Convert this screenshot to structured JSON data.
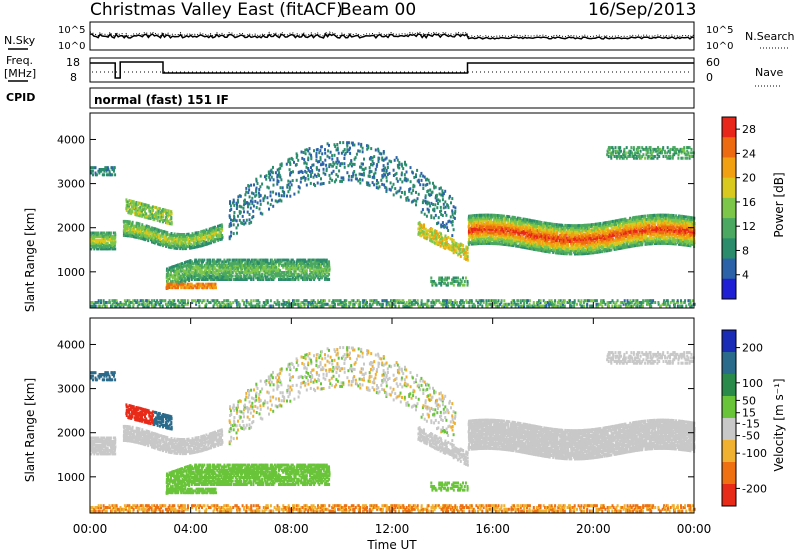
{
  "header": {
    "title": "Christmas Valley East (fitACF)",
    "beam": "Beam 00",
    "date": "16/Sep/2013"
  },
  "noise_panel": {
    "left_label": "N.Sky",
    "right_label": "N.Search",
    "y_ticks": [
      "10^5",
      "10^0"
    ]
  },
  "freq_panel": {
    "left_label_1": "Freq.",
    "left_label_2": "[MHz]",
    "right_label": "Nave",
    "left_ticks": [
      "18",
      "8"
    ],
    "right_ticks": [
      "60",
      "0"
    ]
  },
  "cpid_panel": {
    "label": "CPID",
    "program": "normal (fast) 151 IF"
  },
  "chart_data": [
    {
      "type": "heatmap",
      "panel": "power",
      "ylabel": "Slant Range [km]",
      "xlabel": "Time UT",
      "x_ticks": [
        "00:00",
        "04:00",
        "08:00",
        "12:00",
        "16:00",
        "20:00",
        "00:00"
      ],
      "y_ticks": [
        1000,
        2000,
        3000,
        4000
      ],
      "ylim": [
        180,
        4600
      ],
      "xlim_hours": [
        0,
        24
      ],
      "colorbar": {
        "label": "Power [dB]",
        "ticks": [
          4,
          8,
          12,
          16,
          20,
          24,
          28
        ],
        "range": [
          0,
          30
        ],
        "colors": [
          "#1f1fd6",
          "#2b62a8",
          "#2a8c6a",
          "#4aa860",
          "#7cc64a",
          "#d9c81e",
          "#f0a010",
          "#ee6a10",
          "#e8261a"
        ]
      },
      "bands": [
        {
          "name": "main",
          "start_h": 0,
          "end_h": 1.0,
          "center_km": 1700,
          "width_km": 380,
          "power_db": 16
        },
        {
          "name": "main",
          "start_h": 1.3,
          "end_h": 5.0,
          "center_km": 1900,
          "width_km": 350,
          "power_db": 15
        },
        {
          "name": "inner",
          "start_h": 3.0,
          "end_h": 9.5,
          "center_km": 1080,
          "width_km": 420,
          "power_db": 12
        },
        {
          "name": "evening",
          "start_h": 15.0,
          "end_h": 24,
          "center_km": 1850,
          "width_km": 600,
          "power_db": 20
        }
      ]
    },
    {
      "type": "heatmap",
      "panel": "velocity",
      "ylabel": "Slant Range [km]",
      "xlabel": "Time UT",
      "x_ticks": [
        "00:00",
        "04:00",
        "08:00",
        "12:00",
        "16:00",
        "20:00",
        "00:00"
      ],
      "y_ticks": [
        1000,
        2000,
        3000,
        4000
      ],
      "ylim": [
        180,
        4600
      ],
      "xlim_hours": [
        0,
        24
      ],
      "colorbar": {
        "label": "Velocity [m s⁻¹]",
        "ticks": [
          200,
          100,
          50,
          15,
          -15,
          -50,
          -100,
          -200
        ],
        "range": [
          -250,
          250
        ],
        "colors": [
          "#1a2bb5",
          "#2a6a8a",
          "#2a8a4a",
          "#6ac43a",
          "#c8c8c8",
          "#f0b030",
          "#ee7010",
          "#e82a18"
        ]
      }
    }
  ]
}
